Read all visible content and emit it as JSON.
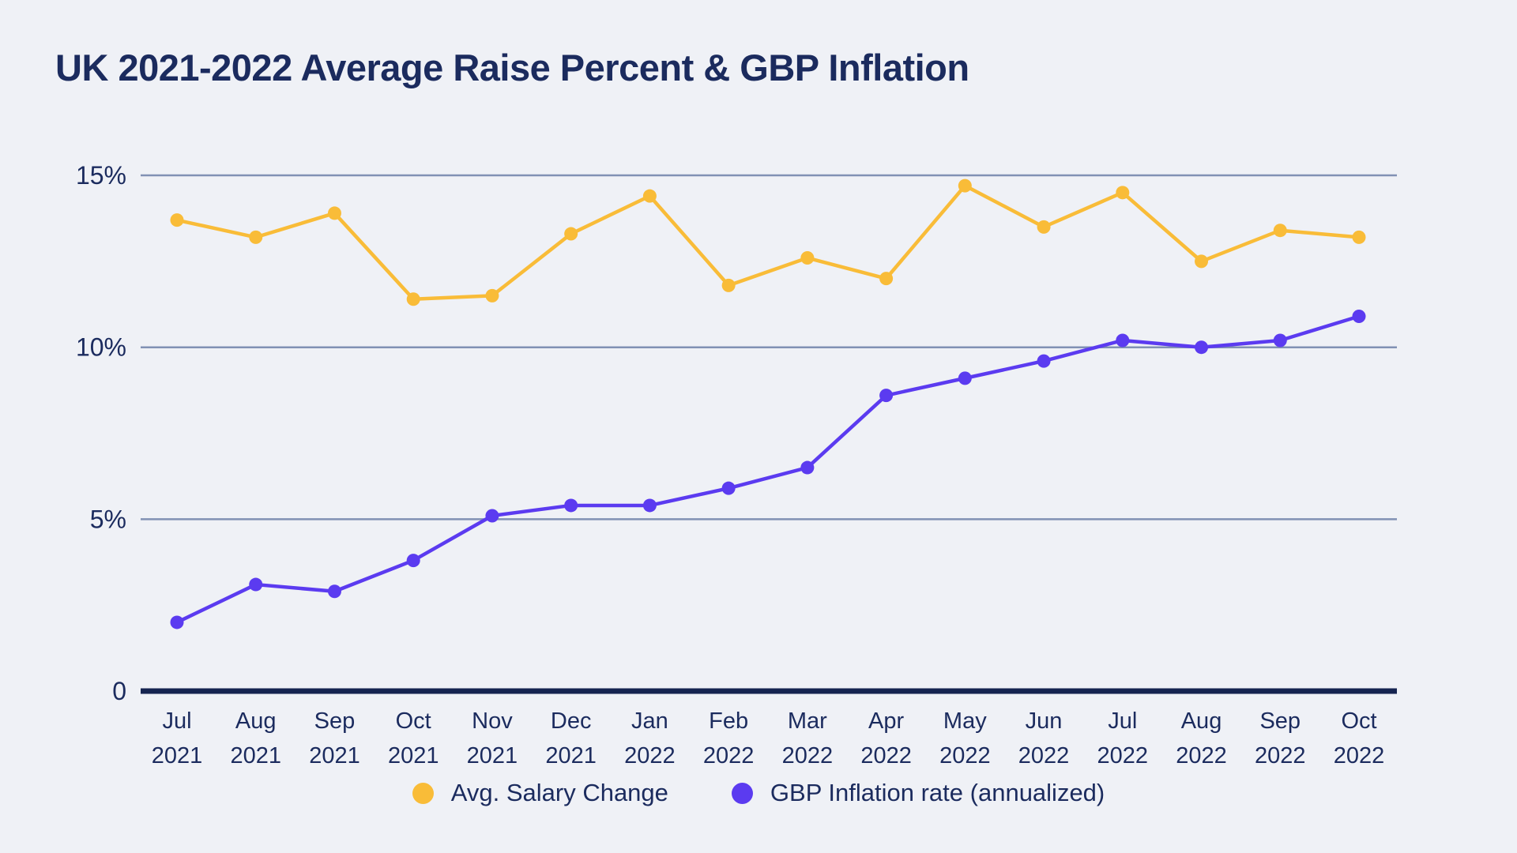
{
  "title": "UK 2021-2022 Average Raise Percent & GBP Inflation",
  "colors": {
    "background": "#EFF1F6",
    "title_text": "#1B2B5E",
    "tick_text": "#1B2B5E",
    "axis_line": "#152450",
    "gridline": "#8191B4",
    "salary": "#F9BC38",
    "inflation": "#5B3BF0"
  },
  "chart_data": {
    "type": "line",
    "categories": [
      {
        "month": "Jul",
        "year": "2021"
      },
      {
        "month": "Aug",
        "year": "2021"
      },
      {
        "month": "Sep",
        "year": "2021"
      },
      {
        "month": "Oct",
        "year": "2021"
      },
      {
        "month": "Nov",
        "year": "2021"
      },
      {
        "month": "Dec",
        "year": "2021"
      },
      {
        "month": "Jan",
        "year": "2022"
      },
      {
        "month": "Feb",
        "year": "2022"
      },
      {
        "month": "Mar",
        "year": "2022"
      },
      {
        "month": "Apr",
        "year": "2022"
      },
      {
        "month": "May",
        "year": "2022"
      },
      {
        "month": "Jun",
        "year": "2022"
      },
      {
        "month": "Jul",
        "year": "2022"
      },
      {
        "month": "Aug",
        "year": "2022"
      },
      {
        "month": "Sep",
        "year": "2022"
      },
      {
        "month": "Oct",
        "year": "2022"
      }
    ],
    "series": [
      {
        "name": "Avg. Salary Change",
        "color_key": "salary",
        "values": [
          13.7,
          13.2,
          13.9,
          11.4,
          11.5,
          13.3,
          14.4,
          11.8,
          12.6,
          12.0,
          14.7,
          13.5,
          14.5,
          12.5,
          13.4,
          13.2
        ]
      },
      {
        "name": "GBP Inflation rate (annualized)",
        "color_key": "inflation",
        "values": [
          2.0,
          3.1,
          2.9,
          3.8,
          5.1,
          5.4,
          5.4,
          5.9,
          6.5,
          8.6,
          9.1,
          9.6,
          10.2,
          10.0,
          10.2,
          10.9
        ]
      }
    ],
    "yticks": [
      {
        "value": 15,
        "label": "15%"
      },
      {
        "value": 10,
        "label": "10%"
      },
      {
        "value": 5,
        "label": "5%"
      },
      {
        "value": 0,
        "label": "0"
      }
    ],
    "ylim": [
      0,
      16
    ],
    "grid": true,
    "legend_position": "bottom"
  }
}
